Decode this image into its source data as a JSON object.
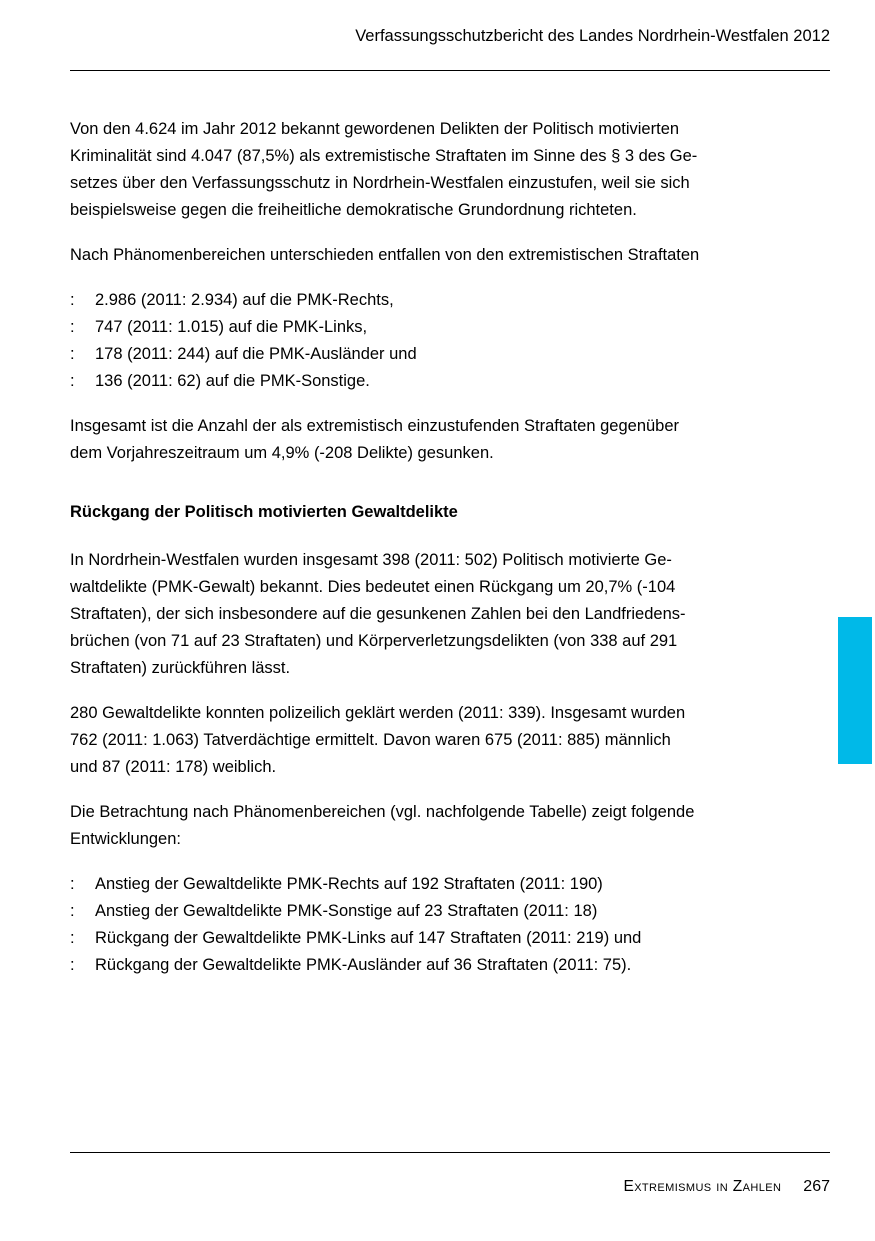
{
  "accent_color": "#00b9e8",
  "header": {
    "title": "Verfassungsschutzbericht des Landes Nordrhein-Westfalen 2012"
  },
  "body": {
    "p1": "Von den 4.624 im Jahr 2012 bekannt gewordenen Delikten der Politisch motivierten\nKriminalität sind 4.047 (87,5%) als extremistische Straftaten im Sinne des § 3 des Ge-\nsetzes über den Verfassungsschutz in Nordrhein-Westfalen einzustufen, weil sie sich\nbeispielsweise gegen die freiheitliche demokratische Grundordnung richteten.",
    "p2": "Nach Phänomenbereichen unterschieden entfallen von den extremistischen Straftaten",
    "list1": {
      "marker": ":",
      "items": [
        "2.986 (2011: 2.934) auf die PMK-Rechts,",
        "747 (2011: 1.015) auf die PMK-Links,",
        "178 (2011: 244) auf die PMK-Ausländer und",
        "136 (2011: 62) auf die PMK-Sonstige."
      ]
    },
    "p3": "Insgesamt ist die Anzahl der als extremistisch einzustufenden Straftaten gegenüber\ndem Vorjahreszeitraum um 4,9% (-208 Delikte) gesunken.",
    "heading1": "Rückgang der Politisch motivierten Gewaltdelikte",
    "p4": "In Nordrhein-Westfalen wurden insgesamt 398 (2011: 502) Politisch motivierte Ge-\nwaltdelikte (PMK-Gewalt) bekannt. Dies bedeutet einen Rückgang um 20,7% (-104\nStraftaten), der sich insbesondere auf die gesunkenen Zahlen bei den Landfriedens-\nbrüchen (von 71 auf 23 Straftaten) und Körperverletzungsdelikten (von 338 auf 291\nStraftaten) zurückführen lässt.",
    "p5": "280 Gewaltdelikte konnten polizeilich geklärt werden (2011: 339). Insgesamt wurden\n762 (2011: 1.063) Tatverdächtige ermittelt. Davon waren 675 (2011: 885) männlich\nund 87 (2011: 178) weiblich.",
    "p6": "Die Betrachtung nach Phänomenbereichen (vgl. nachfolgende Tabelle) zeigt folgende\nEntwicklungen:",
    "list2": {
      "marker": ":",
      "items": [
        "Anstieg der Gewaltdelikte PMK-Rechts auf 192 Straftaten (2011: 190)",
        "Anstieg der Gewaltdelikte PMK-Sonstige auf 23 Straftaten (2011: 18)",
        "Rückgang der Gewaltdelikte PMK-Links auf 147 Straftaten (2011: 219) und",
        "Rückgang der Gewaltdelikte PMK-Ausländer auf 36 Straftaten (2011: 75)."
      ]
    }
  },
  "footer": {
    "section_label": "Extremismus in Zahlen",
    "page_number": "267"
  }
}
